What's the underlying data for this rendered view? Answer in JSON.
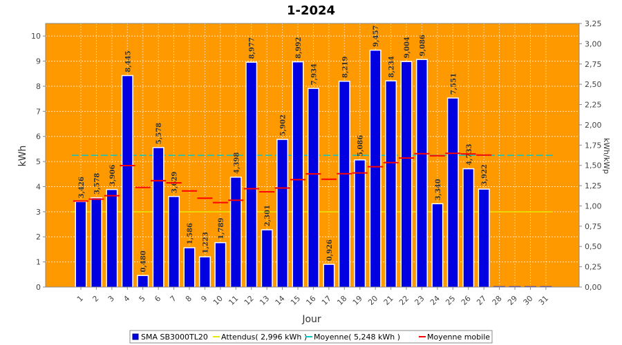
{
  "chart_data": {
    "type": "bar",
    "title": "1-2024",
    "xlabel": "Jour",
    "ylabel": "kWh",
    "y2label": "kWh/kWp",
    "ylim": [
      0,
      10.5
    ],
    "y2lim": [
      0,
      3.25
    ],
    "yticks": [
      "0",
      "1",
      "2",
      "3",
      "4",
      "5",
      "6",
      "7",
      "8",
      "9",
      "10"
    ],
    "y2ticks": [
      "0,00",
      "0,25",
      "0,50",
      "0,75",
      "1,00",
      "1,25",
      "1,50",
      "1,75",
      "2,00",
      "2,25",
      "2,50",
      "2,75",
      "3,00",
      "3,25"
    ],
    "categories": [
      "1",
      "2",
      "3",
      "4",
      "5",
      "6",
      "7",
      "8",
      "9",
      "10",
      "11",
      "12",
      "13",
      "14",
      "15",
      "16",
      "17",
      "18",
      "19",
      "20",
      "21",
      "22",
      "23",
      "24",
      "25",
      "26",
      "27",
      "28",
      "29",
      "30",
      "31"
    ],
    "series": [
      {
        "name": "SMA SB3000TL20",
        "values": [
          3.426,
          3.578,
          3.906,
          8.445,
          0.48,
          5.578,
          3.629,
          1.586,
          1.223,
          1.789,
          4.398,
          8.977,
          2.301,
          5.902,
          8.992,
          7.934,
          0.926,
          8.219,
          5.086,
          9.457,
          8.234,
          9.004,
          9.086,
          3.34,
          7.551,
          4.733,
          3.922,
          0,
          0,
          0,
          0
        ],
        "labels": [
          "3,426",
          "3,578",
          "3,906",
          "8,445",
          "0,480",
          "5,578",
          "3,629",
          "1,586",
          "1,223",
          "1,789",
          "4,398",
          "8,977",
          "2,301",
          "5,902",
          "8,992",
          "7,934",
          "0,926",
          "8,219",
          "5,086",
          "9,457",
          "8,234",
          "9,004",
          "9,086",
          "3,340",
          "7,551",
          "4,733",
          "3,922",
          "",
          "",
          "",
          ""
        ],
        "color": "#0000e0"
      },
      {
        "name": "Moyenne mobile",
        "values": [
          3.426,
          3.502,
          3.637,
          4.839,
          3.967,
          4.235,
          4.149,
          3.829,
          3.539,
          3.364,
          3.458,
          3.918,
          3.793,
          3.943,
          4.279,
          4.507,
          4.296,
          4.514,
          4.546,
          4.792,
          4.958,
          5.141,
          5.313,
          5.231,
          5.324,
          5.301,
          5.256,
          null,
          null,
          null,
          null
        ],
        "color": "#ff0000"
      }
    ],
    "reference_lines": [
      {
        "name": "Attendus( 2,996 kWh )",
        "value": 2.996,
        "color": "#e8e800"
      },
      {
        "name": "Moyenne( 5,248 kWh )",
        "value": 5.248,
        "color": "#00c8c8"
      }
    ],
    "legend": {
      "position": "bottom",
      "items": [
        {
          "label": "SMA SB3000TL20",
          "color": "#0000e0"
        },
        {
          "label": "Attendus( 2,996 kWh )",
          "color": "#e8e800"
        },
        {
          "label": "Moyenne( 5,248 kWh )",
          "color": "#00c8c8"
        },
        {
          "label": "Moyenne mobile",
          "color": "#ff0000"
        }
      ]
    },
    "plot_background": "#ff9900",
    "grid": true
  }
}
